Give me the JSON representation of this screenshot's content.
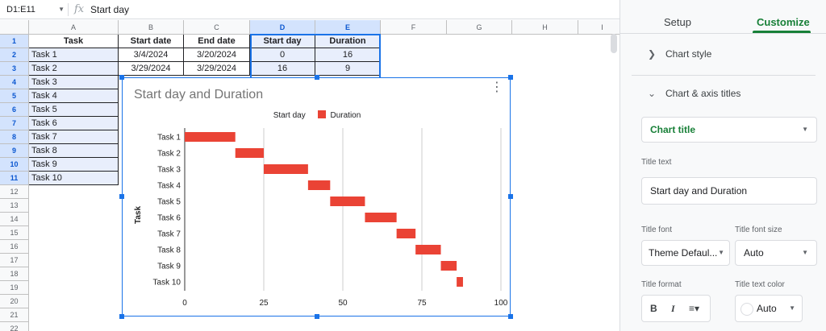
{
  "formula_bar": {
    "name_box": "D1:E11",
    "fx": "fx",
    "value": "Start day"
  },
  "columns": [
    "A",
    "B",
    "C",
    "D",
    "E",
    "F",
    "G",
    "H",
    "I"
  ],
  "rows": [
    "1",
    "2",
    "3",
    "4",
    "5",
    "6",
    "7",
    "8",
    "9",
    "10",
    "11",
    "12",
    "13",
    "14",
    "15",
    "16",
    "17",
    "18",
    "19",
    "20",
    "21",
    "22"
  ],
  "table": {
    "headers": [
      "Task",
      "Start date",
      "End date",
      "Start day",
      "Duration"
    ],
    "rows": [
      [
        "Task 1",
        "3/4/2024",
        "3/20/2024",
        "0",
        "16"
      ],
      [
        "Task 2",
        "3/29/2024",
        "3/29/2024",
        "16",
        "9"
      ],
      [
        "Task 3"
      ],
      [
        "Task 4"
      ],
      [
        "Task 5"
      ],
      [
        "Task 6"
      ],
      [
        "Task 7"
      ],
      [
        "Task 8"
      ],
      [
        "Task 9"
      ],
      [
        "Task 10"
      ]
    ]
  },
  "chart_data": {
    "type": "bar",
    "orientation": "horizontal",
    "stacked": true,
    "title": "Start day and Duration",
    "ylabel": "Task",
    "xlabel": "",
    "categories": [
      "Task 1",
      "Task 2",
      "Task 3",
      "Task 4",
      "Task 5",
      "Task 6",
      "Task 7",
      "Task 8",
      "Task 9",
      "Task 10"
    ],
    "series": [
      {
        "name": "Start day",
        "values": [
          0,
          16,
          25,
          39,
          46,
          57,
          67,
          73,
          81,
          86
        ],
        "color": "transparent"
      },
      {
        "name": "Duration",
        "values": [
          16,
          9,
          14,
          7,
          11,
          10,
          6,
          8,
          5,
          2
        ],
        "color": "#ea4335"
      }
    ],
    "xlim": [
      0,
      100
    ],
    "xticks": [
      "0",
      "25",
      "50",
      "75",
      "100"
    ],
    "legend": "top",
    "grid": true
  },
  "panel": {
    "tabs": {
      "setup": "Setup",
      "customize": "Customize"
    },
    "chart_style": "Chart style",
    "axis_titles": "Chart & axis titles",
    "title_select": "Chart title",
    "title_text_label": "Title text",
    "title_text_value": "Start day and Duration",
    "title_font_label": "Title font",
    "title_font_value": "Theme Defaul...",
    "title_size_label": "Title font size",
    "title_size_value": "Auto",
    "title_format_label": "Title format",
    "title_color_label": "Title text color",
    "title_color_value": "Auto",
    "bold": "B",
    "italic": "I",
    "align": "≡▾"
  }
}
